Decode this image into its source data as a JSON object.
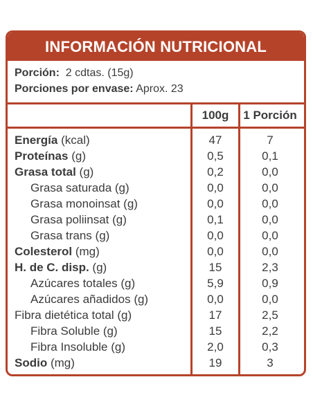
{
  "title": "INFORMACIÓN NUTRICIONAL",
  "serving": {
    "portion_label": "Porción:",
    "portion_value": "2 cdtas. (15g)",
    "servings_label": "Porciones por envase:",
    "servings_value": "Aprox. 23"
  },
  "columns": {
    "per100": "100g",
    "perPortion": "1 Porción"
  },
  "rows": [
    {
      "bold": "Energía",
      "rest": " (kcal)",
      "v100": "47",
      "vp": "7",
      "indent": false
    },
    {
      "bold": "Proteínas",
      "rest": " (g)",
      "v100": "0,5",
      "vp": "0,1",
      "indent": false
    },
    {
      "bold": "Grasa total",
      "rest": " (g)",
      "v100": "0,2",
      "vp": "0,0",
      "indent": false
    },
    {
      "bold": "",
      "rest": "Grasa saturada (g)",
      "v100": "0,0",
      "vp": "0,0",
      "indent": true
    },
    {
      "bold": "",
      "rest": "Grasa monoinsat (g)",
      "v100": "0,0",
      "vp": "0,0",
      "indent": true
    },
    {
      "bold": "",
      "rest": "Grasa poliinsat (g)",
      "v100": "0,1",
      "vp": "0,0",
      "indent": true
    },
    {
      "bold": "",
      "rest": "Grasa trans (g)",
      "v100": "0,0",
      "vp": "0,0",
      "indent": true
    },
    {
      "bold": "Colesterol",
      "rest": " (mg)",
      "v100": "0,0",
      "vp": "0,0",
      "indent": false
    },
    {
      "bold": "H. de C. disp.",
      "rest": " (g)",
      "v100": "15",
      "vp": "2,3",
      "indent": false
    },
    {
      "bold": "",
      "rest": "Azúcares totales (g)",
      "v100": "5,9",
      "vp": "0,9",
      "indent": true
    },
    {
      "bold": "",
      "rest": "Azúcares añadidos (g)",
      "v100": "0,0",
      "vp": "0,0",
      "indent": true
    },
    {
      "bold": "",
      "rest": "Fibra dietética total (g)",
      "v100": "17",
      "vp": "2,5",
      "indent": false
    },
    {
      "bold": "",
      "rest": "Fibra Soluble (g)",
      "v100": "15",
      "vp": "2,2",
      "indent": true
    },
    {
      "bold": "",
      "rest": "Fibra Insoluble (g)",
      "v100": "2,0",
      "vp": "0,3",
      "indent": true
    },
    {
      "bold": "Sodio",
      "rest": " (mg)",
      "v100": "19",
      "vp": "3",
      "indent": false
    }
  ],
  "colors": {
    "accent": "#b5432a",
    "text": "#3b3b3b"
  }
}
